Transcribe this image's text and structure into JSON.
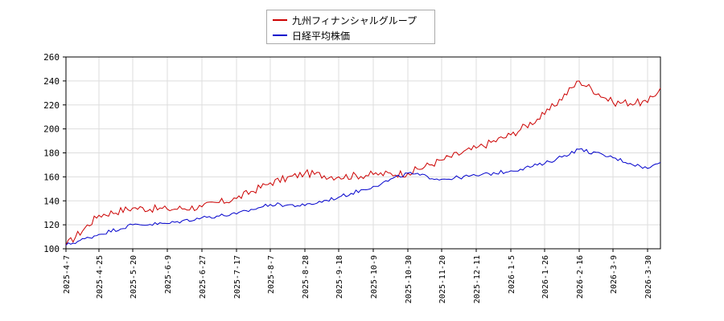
{
  "chart_data": {
    "type": "line",
    "title": "",
    "xlabel": "",
    "ylabel": "",
    "ylim": [
      100,
      260
    ],
    "yticks": [
      100,
      120,
      140,
      160,
      180,
      200,
      220,
      240,
      260
    ],
    "xticks": [
      "2025-4-7",
      "2025-4-25",
      "2025-5-20",
      "2025-6-9",
      "2025-6-27",
      "2025-7-17",
      "2025-8-7",
      "2025-8-28",
      "2025-9-18",
      "2025-10-9",
      "2025-10-30",
      "2025-11-20",
      "2025-12-11",
      "2026-1-5",
      "2026-1-26",
      "2026-2-16",
      "2026-3-9",
      "2026-3-30"
    ],
    "grid": true,
    "legend": "top-center",
    "x": [
      "2025-4-7",
      "2025-4-25",
      "2025-5-20",
      "2025-6-9",
      "2025-6-27",
      "2025-7-17",
      "2025-8-7",
      "2025-8-28",
      "2025-9-18",
      "2025-10-9",
      "2025-10-30",
      "2025-11-20",
      "2025-12-11",
      "2026-1-5",
      "2026-1-26",
      "2026-2-16",
      "2026-3-9",
      "2026-3-30"
    ],
    "series": [
      {
        "name": "九州フィナンシャルグループ",
        "color": "#cc0000",
        "values": [
          103,
          128,
          134,
          133,
          135,
          142,
          155,
          163,
          160,
          162,
          163,
          174,
          184,
          195,
          212,
          240,
          222,
          222
        ],
        "last": 234
      },
      {
        "name": "日経平均株価",
        "color": "#0000cc",
        "values": [
          103,
          112,
          120,
          121,
          126,
          129,
          137,
          136,
          143,
          152,
          163,
          158,
          161,
          165,
          171,
          183,
          176,
          167
        ],
        "last": 172
      }
    ]
  }
}
